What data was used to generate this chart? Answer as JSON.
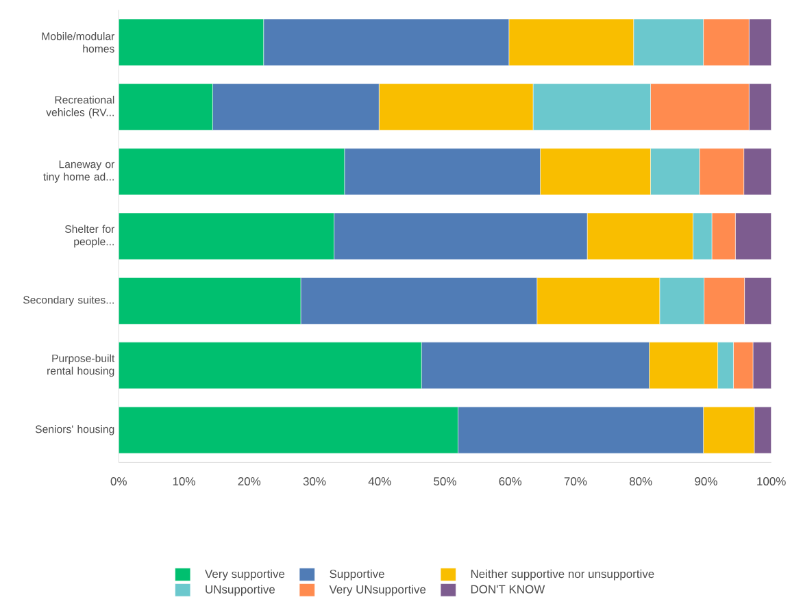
{
  "chart_data": {
    "type": "bar",
    "orientation": "horizontal",
    "stacked": true,
    "categories": [
      "Mobile/modular homes",
      "Recreational vehicles (RV...",
      "Laneway or tiny home ad...",
      "Shelter for people...",
      "Secondary suites...",
      "Purpose-built rental housing",
      "Seniors' housing"
    ],
    "series": [
      {
        "name": "Very supportive",
        "color": "#00bf6f",
        "values": [
          22.2,
          14.4,
          34.6,
          33.0,
          27.9,
          46.4,
          52.0
        ]
      },
      {
        "name": "Supportive",
        "color": "#507cb6",
        "values": [
          37.6,
          25.5,
          30.0,
          38.8,
          36.2,
          34.9,
          37.6
        ]
      },
      {
        "name": "Neither supportive nor unsupportive",
        "color": "#f9be00",
        "values": [
          19.1,
          23.6,
          16.9,
          16.2,
          18.8,
          10.5,
          7.8
        ]
      },
      {
        "name": "UNsupportive",
        "color": "#6bc8cd",
        "values": [
          10.7,
          18.0,
          7.5,
          2.9,
          6.8,
          2.4,
          0
        ]
      },
      {
        "name": "Very UNsupportive",
        "color": "#ff8b4f",
        "values": [
          7.0,
          15.1,
          6.8,
          3.6,
          6.2,
          3.0,
          0
        ]
      },
      {
        "name": "DON'T KNOW",
        "color": "#7d5c8f",
        "values": [
          3.4,
          3.4,
          4.2,
          5.5,
          4.1,
          2.8,
          2.6
        ]
      }
    ],
    "xlim": [
      0,
      100
    ],
    "xticks": [
      {
        "value": 0,
        "label": "0%"
      },
      {
        "value": 10,
        "label": "10%"
      },
      {
        "value": 20,
        "label": "20%"
      },
      {
        "value": 30,
        "label": "30%"
      },
      {
        "value": 40,
        "label": "40%"
      },
      {
        "value": 50,
        "label": "50%"
      },
      {
        "value": 60,
        "label": "60%"
      },
      {
        "value": 70,
        "label": "70%"
      },
      {
        "value": 80,
        "label": "80%"
      },
      {
        "value": 90,
        "label": "90%"
      },
      {
        "value": 100,
        "label": "100%"
      }
    ],
    "legend": "bottom"
  }
}
